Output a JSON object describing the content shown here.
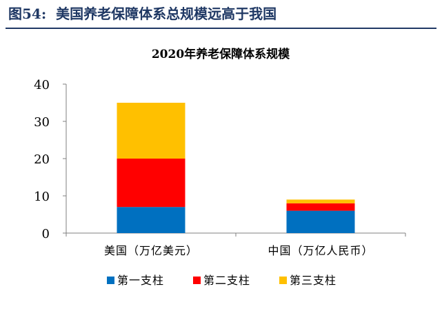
{
  "figure_header": {
    "number": "图54:",
    "title": "美国养老保障体系总规模远高于我国"
  },
  "colors": {
    "header_text": "#1f3864",
    "axis": "#7f7f7f",
    "pillar_1": "#0070c0",
    "pillar_2": "#ff0000",
    "pillar_3": "#ffc000"
  },
  "chart_data": {
    "type": "bar",
    "stacked": true,
    "title": "2020年养老保障体系规模",
    "xlabel": "",
    "ylabel": "",
    "ylim": [
      0,
      40
    ],
    "yticks": [
      0,
      10,
      20,
      30,
      40
    ],
    "grid": false,
    "legend_position": "bottom",
    "categories": [
      "美国（万亿美元）",
      "中国（万亿人民币）"
    ],
    "series": [
      {
        "name": "第一支柱",
        "values": [
          7,
          6
        ],
        "color": "#0070c0"
      },
      {
        "name": "第二支柱",
        "values": [
          13,
          2
        ],
        "color": "#ff0000"
      },
      {
        "name": "第三支柱",
        "values": [
          15,
          1
        ],
        "color": "#ffc000"
      }
    ]
  }
}
